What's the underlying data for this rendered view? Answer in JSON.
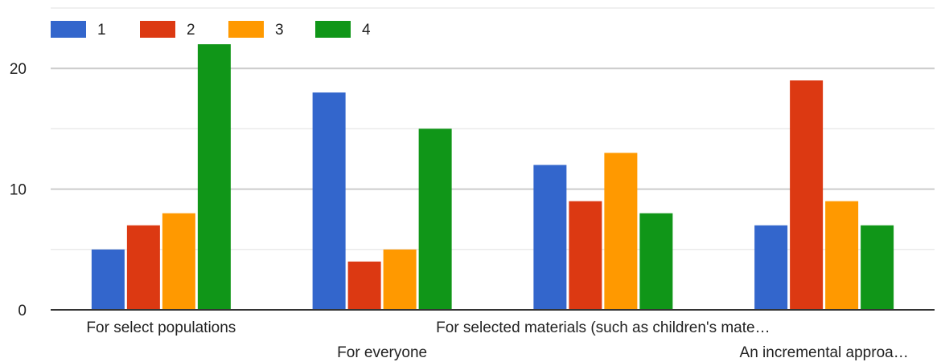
{
  "chart_data": {
    "type": "bar",
    "categories": [
      "For select populations",
      "For everyone",
      "For selected materials (such as children's mate…",
      "An incremental approa…"
    ],
    "series": [
      {
        "name": "1",
        "color": "#3366cc",
        "values": [
          5,
          18,
          12,
          7
        ]
      },
      {
        "name": "2",
        "color": "#dc3912",
        "values": [
          7,
          4,
          9,
          19
        ]
      },
      {
        "name": "3",
        "color": "#ff9900",
        "values": [
          8,
          5,
          13,
          9
        ]
      },
      {
        "name": "4",
        "color": "#109618",
        "values": [
          22,
          15,
          8,
          7
        ]
      }
    ],
    "ylim": [
      0,
      25
    ],
    "yticks": [
      0,
      10,
      20
    ],
    "grid": true,
    "legend": "top-left",
    "title": "",
    "xlabel": "",
    "ylabel": ""
  }
}
